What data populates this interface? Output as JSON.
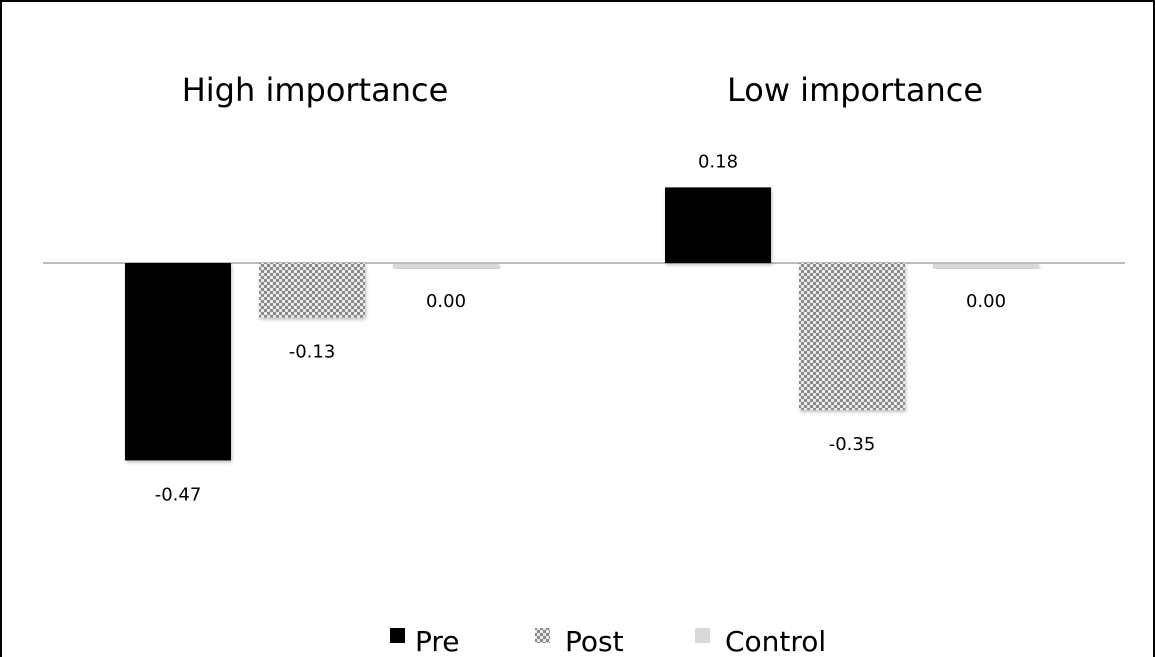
{
  "chart_data": {
    "type": "bar",
    "categories": [
      "High importance",
      "Low importance"
    ],
    "series": [
      {
        "name": "Pre",
        "values": [
          -0.47,
          0.18
        ],
        "labels": [
          "-0.47",
          "0.18"
        ],
        "color": "#000000"
      },
      {
        "name": "Post",
        "values": [
          -0.13,
          -0.35
        ],
        "labels": [
          "-0.13",
          "-0.35"
        ],
        "color": "#bfbfbf"
      },
      {
        "name": "Control",
        "values": [
          0.0,
          0.0
        ],
        "labels": [
          "0.00",
          "0.00"
        ],
        "color": "#d9d9d9"
      }
    ],
    "legend_position": "bottom",
    "grid": false,
    "ylim": [
      -0.75,
      0.5
    ]
  }
}
